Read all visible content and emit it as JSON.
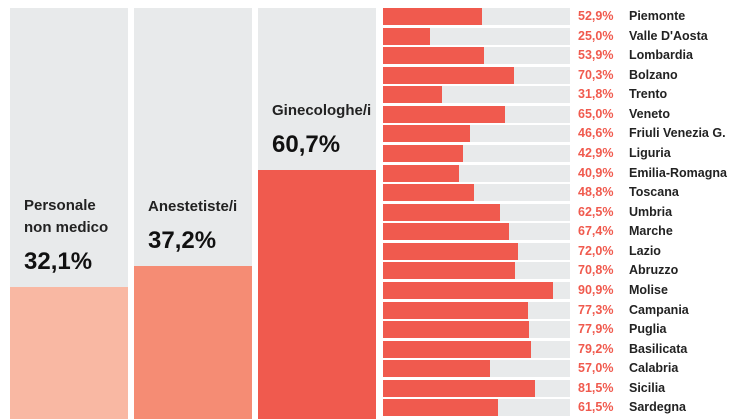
{
  "chart_data": [
    {
      "type": "column",
      "categories": [
        "Personale non medico",
        "Anestetiste/i",
        "Ginecologhe/i"
      ],
      "values": [
        32.1,
        37.2,
        60.7
      ],
      "value_labels": [
        "32,1%",
        "37,2%",
        "60,7%"
      ],
      "colors": [
        "#f9b8a3",
        "#f58c74",
        "#f05a4e"
      ],
      "background": "#e8eaeb",
      "ylim": [
        0,
        100
      ]
    },
    {
      "type": "hbar",
      "categories": [
        "Piemonte",
        "Valle D'Aosta",
        "Lombardia",
        "Bolzano",
        "Trento",
        "Veneto",
        "Friuli Venezia G.",
        "Liguria",
        "Emilia-Romagna",
        "Toscana",
        "Umbria",
        "Marche",
        "Lazio",
        "Abruzzo",
        "Molise",
        "Campania",
        "Puglia",
        "Basilicata",
        "Calabria",
        "Sicilia",
        "Sardegna"
      ],
      "values": [
        52.9,
        25.0,
        53.9,
        70.3,
        31.8,
        65.0,
        46.6,
        42.9,
        40.9,
        48.8,
        62.5,
        67.4,
        72.0,
        70.8,
        90.9,
        77.3,
        77.9,
        79.2,
        57.0,
        81.5,
        61.5
      ],
      "value_labels": [
        "52,9%",
        "25,0%",
        "53,9%",
        "70,3%",
        "31,8%",
        "65,0%",
        "46,6%",
        "42,9%",
        "40,9%",
        "48,8%",
        "62,5%",
        "67,4%",
        "72,0%",
        "70,8%",
        "90,9%",
        "77,3%",
        "77,9%",
        "79,2%",
        "57,0%",
        "81,5%",
        "61,5%"
      ],
      "color": "#f05a4e",
      "background": "#e8eaeb",
      "xlim": [
        0,
        100
      ]
    }
  ]
}
